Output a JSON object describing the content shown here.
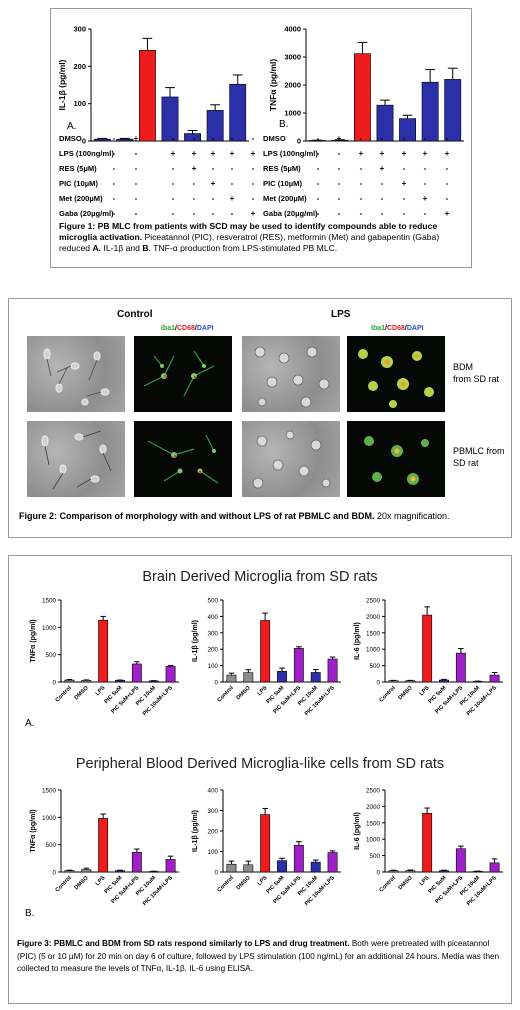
{
  "figure1": {
    "label_a": "A.",
    "label_b": "B.",
    "row_labels": [
      "DMSO",
      "LPS (100ng/ml)",
      "RES (5µM)",
      "PIC (10µM)",
      "Met (200µM)",
      "Gaba (20µg/ml)"
    ],
    "signs": [
      [
        "-",
        "+",
        "-",
        "-",
        "-",
        "-",
        "-"
      ],
      [
        "-",
        "-",
        "+",
        "+",
        "+",
        "+",
        "+"
      ],
      [
        "-",
        "-",
        "-",
        "+",
        "-",
        "-",
        "-"
      ],
      [
        "-",
        "-",
        "-",
        "-",
        "+",
        "-",
        "-"
      ],
      [
        "-",
        "-",
        "-",
        "-",
        "-",
        "+",
        "-"
      ],
      [
        "-",
        "-",
        "-",
        "-",
        "-",
        "-",
        "+"
      ]
    ],
    "caption_bold": "Figure 1: PB MLC from patients with SCD may be used to identify compounds able to reduce microglia activation.",
    "caption_rest": " Piceatannol (PIC), resveratrol (RES), metformin (Met) and gabapentin (Gaba) reduced ",
    "caption_a": "A.",
    "caption_mid": " IL-1β and ",
    "caption_b": "B",
    "caption_end": ". TNF-α production from LPS-stimulated PB MLC."
  },
  "figure2": {
    "col_control": "Control",
    "col_lps": "LPS",
    "stain_iba1": "Iba1",
    "stain_slash1": "/",
    "stain_cd68": "CD68",
    "stain_slash2": "/",
    "stain_dapi": "DAPI",
    "row_bdm": "BDM\nfrom SD rat",
    "row_pbmlc": "PBMLC from\nSD rat",
    "caption_bold": "Figure 2: Comparison of morphology with and without LPS of rat PBMLC and BDM.",
    "caption_rest": " 20x magnification."
  },
  "figure3": {
    "title_top": "Brain Derived Microglia from SD rats",
    "title_bottom": "Peripheral Blood Derived Microglia-like cells from SD rats",
    "label_a": "A.",
    "label_b": "B.",
    "caption_bold": "Figure 3: PBMLC and BDM from SD rats respond similarly to LPS and drug treatment.",
    "caption_rest": " Both were pretreated with piceatannol (PIC) (5 or 10 µM) for 20 min on day 6 of culture, followed by LPS stimulation (100 ng/mL) for an additional 24 hours. Media was then collected to measure the levels of TNFα, IL-1β, IL-6  using ELISA."
  },
  "colors": {
    "red": "#ee1c1c",
    "blue": "#2b2fa8",
    "purple": "#a020c8",
    "gray": "#8c8c8c",
    "black": "#000000"
  },
  "chart_data": [
    {
      "type": "bar",
      "id": "fig1A",
      "ylabel": "IL-1β (pg/ml)",
      "ylim": [
        0,
        300
      ],
      "yticks": [
        0,
        100,
        200,
        300
      ],
      "categories": [
        "",
        "",
        "",
        "",
        "",
        "",
        ""
      ],
      "values": [
        5,
        5,
        243,
        118,
        20,
        82,
        152
      ],
      "errors": [
        2,
        2,
        32,
        25,
        8,
        15,
        25
      ],
      "colors": [
        "blue",
        "blue",
        "red",
        "blue",
        "blue",
        "blue",
        "blue"
      ]
    },
    {
      "type": "bar",
      "id": "fig1B",
      "ylabel": "TNFα (pg/ml)",
      "ylim": [
        0,
        4000
      ],
      "yticks": [
        0,
        1000,
        2000,
        3000,
        4000
      ],
      "categories": [
        "",
        "",
        "",
        "",
        "",
        "",
        ""
      ],
      "values": [
        20,
        30,
        3120,
        1280,
        800,
        2100,
        2200
      ],
      "errors": [
        10,
        15,
        400,
        180,
        120,
        450,
        400
      ],
      "colors": [
        "blue",
        "blue",
        "red",
        "blue",
        "blue",
        "blue",
        "blue"
      ]
    },
    {
      "type": "bar",
      "id": "bdmTNF",
      "ylabel": "TNFα (pg/ml)",
      "ylim": [
        0,
        1500
      ],
      "yticks": [
        0,
        500,
        1000,
        1500
      ],
      "categories": [
        "Control",
        "DMSO",
        "LPS",
        "PIC 5uM",
        "PIC 5uM+LPS",
        "PIC 10uM",
        "PIC 10uM+LPS"
      ],
      "values": [
        35,
        30,
        1130,
        30,
        330,
        20,
        285
      ],
      "errors": [
        10,
        8,
        70,
        6,
        40,
        5,
        15
      ],
      "colors": [
        "gray",
        "gray",
        "red",
        "blue",
        "purple",
        "blue",
        "purple"
      ]
    },
    {
      "type": "bar",
      "id": "bdmIL1",
      "ylabel": "IL-1β (pg/ml)",
      "ylim": [
        0,
        500
      ],
      "yticks": [
        0,
        100,
        200,
        300,
        400,
        500
      ],
      "categories": [
        "Control",
        "DMSO",
        "LPS",
        "PIC 5uM",
        "PIC 5uM+LPS",
        "PIC 10uM",
        "PIC 10uM+LPS"
      ],
      "values": [
        42,
        57,
        375,
        65,
        205,
        58,
        140
      ],
      "errors": [
        12,
        18,
        45,
        20,
        10,
        18,
        12
      ],
      "colors": [
        "gray",
        "gray",
        "red",
        "blue",
        "purple",
        "blue",
        "purple"
      ]
    },
    {
      "type": "bar",
      "id": "bdmIL6",
      "ylabel": "IL-6 (pg/ml)",
      "ylim": [
        0,
        2500
      ],
      "yticks": [
        0,
        500,
        1000,
        1500,
        2000,
        2500
      ],
      "categories": [
        "Control",
        "DMSO",
        "LPS",
        "PIC 5uM",
        "PIC 5uM+LPS",
        "PIC 10uM",
        "PIC 10uM+LPS"
      ],
      "values": [
        40,
        40,
        2040,
        60,
        880,
        20,
        210
      ],
      "errors": [
        10,
        10,
        250,
        20,
        140,
        8,
        80
      ],
      "colors": [
        "gray",
        "gray",
        "red",
        "blue",
        "purple",
        "blue",
        "purple"
      ]
    },
    {
      "type": "bar",
      "id": "pbTNF",
      "ylabel": "TNFα (pg/ml)",
      "ylim": [
        0,
        1500
      ],
      "yticks": [
        0,
        500,
        1000,
        1500
      ],
      "categories": [
        "Control",
        "DMSO",
        "LPS",
        "PIC 5uM",
        "PIC 5uM+LPS",
        "PIC 10uM",
        "PIC 10uM+LPS"
      ],
      "values": [
        25,
        45,
        980,
        25,
        360,
        10,
        230
      ],
      "errors": [
        8,
        25,
        80,
        8,
        60,
        5,
        60
      ],
      "colors": [
        "gray",
        "gray",
        "red",
        "blue",
        "purple",
        "blue",
        "purple"
      ]
    },
    {
      "type": "bar",
      "id": "pbIL1",
      "ylabel": "IL-1β (pg/ml)",
      "ylim": [
        0,
        400
      ],
      "yticks": [
        0,
        100,
        200,
        300,
        400
      ],
      "categories": [
        "Control",
        "DMSO",
        "LPS",
        "PIC 5uM",
        "PIC 5uM+LPS",
        "PIC 10uM",
        "PIC 10uM+LPS"
      ],
      "values": [
        38,
        35,
        280,
        55,
        130,
        48,
        95
      ],
      "errors": [
        15,
        18,
        30,
        12,
        18,
        10,
        8
      ],
      "colors": [
        "gray",
        "gray",
        "red",
        "blue",
        "purple",
        "blue",
        "purple"
      ]
    },
    {
      "type": "bar",
      "id": "pbIL6",
      "ylabel": "IL-6 (pg/ml)",
      "ylim": [
        0,
        2500
      ],
      "yticks": [
        0,
        500,
        1000,
        1500,
        2000,
        2500
      ],
      "categories": [
        "Control",
        "DMSO",
        "LPS",
        "PIC 5uM",
        "PIC 5uM+LPS",
        "PIC 10uM",
        "PIC 10uM+LPS"
      ],
      "values": [
        40,
        40,
        1790,
        40,
        710,
        20,
        280
      ],
      "errors": [
        15,
        20,
        160,
        15,
        80,
        8,
        120
      ],
      "colors": [
        "gray",
        "gray",
        "red",
        "blue",
        "purple",
        "blue",
        "purple"
      ]
    }
  ]
}
